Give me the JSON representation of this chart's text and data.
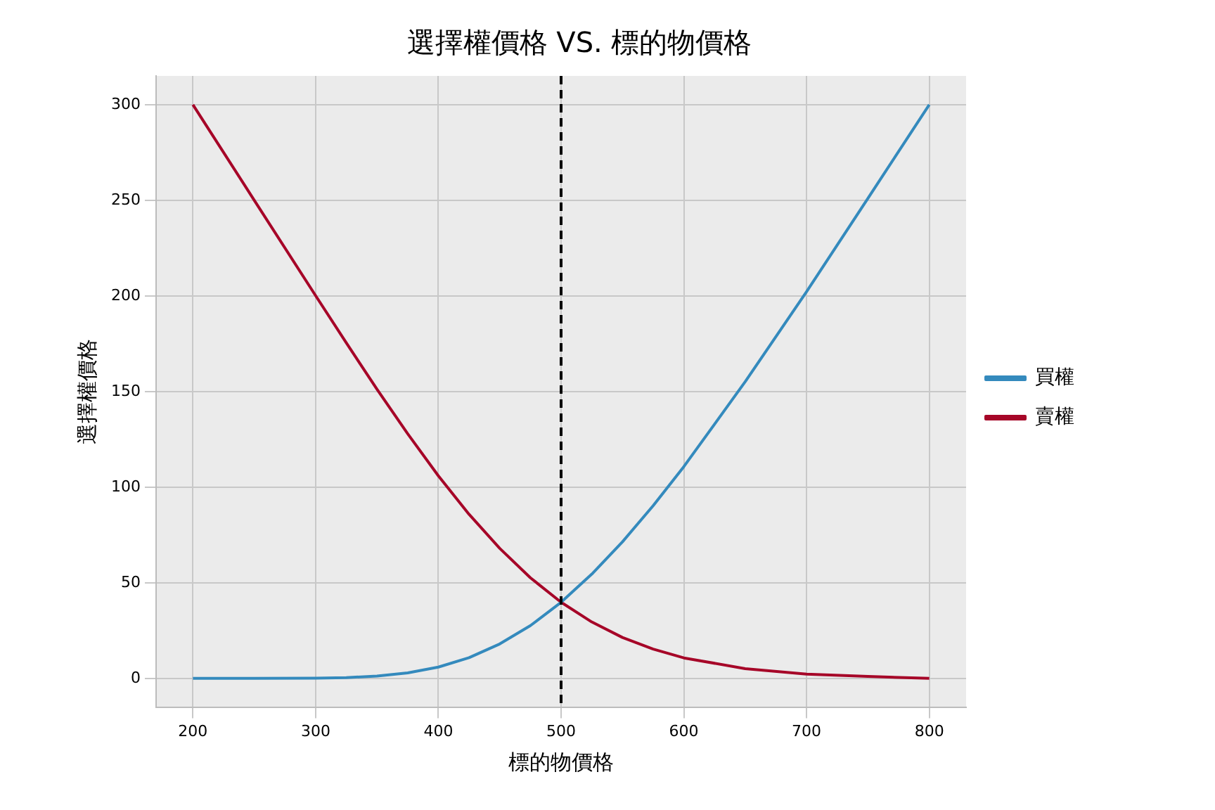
{
  "chart_data": {
    "type": "line",
    "title": "選擇權價格 VS. 標的物價格",
    "xlabel": "標的物價格",
    "ylabel": "選擇權價格",
    "x": [
      200,
      250,
      300,
      325,
      350,
      375,
      400,
      425,
      450,
      475,
      500,
      525,
      550,
      575,
      600,
      650,
      700,
      750,
      800
    ],
    "series": [
      {
        "name": "買權",
        "color": "#348abd",
        "values": [
          0,
          0,
          0.1,
          0.4,
          1.2,
          2.9,
          5.9,
          10.8,
          18.0,
          27.6,
          39.8,
          54.5,
          71.4,
          90.3,
          110.7,
          155.1,
          202.2,
          251.0,
          300.0
        ]
      },
      {
        "name": "賣權",
        "color": "#a60628",
        "values": [
          300,
          250,
          200.1,
          175.4,
          151.2,
          127.9,
          105.9,
          85.8,
          68.0,
          52.6,
          39.8,
          29.5,
          21.4,
          15.3,
          10.7,
          5.1,
          2.2,
          1.0,
          0
        ]
      }
    ],
    "xlim": [
      170,
      830
    ],
    "xticks": [
      200,
      300,
      400,
      500,
      600,
      700,
      800
    ],
    "ylim": [
      -15,
      315
    ],
    "yticks": [
      0,
      50,
      100,
      150,
      200,
      250,
      300
    ],
    "ref_lines": [
      {
        "axis": "x",
        "value": 500,
        "color": "#000000",
        "line_style": "dashed"
      }
    ],
    "grid": true,
    "legend": "right",
    "marker": "none",
    "line_style": "solid"
  }
}
